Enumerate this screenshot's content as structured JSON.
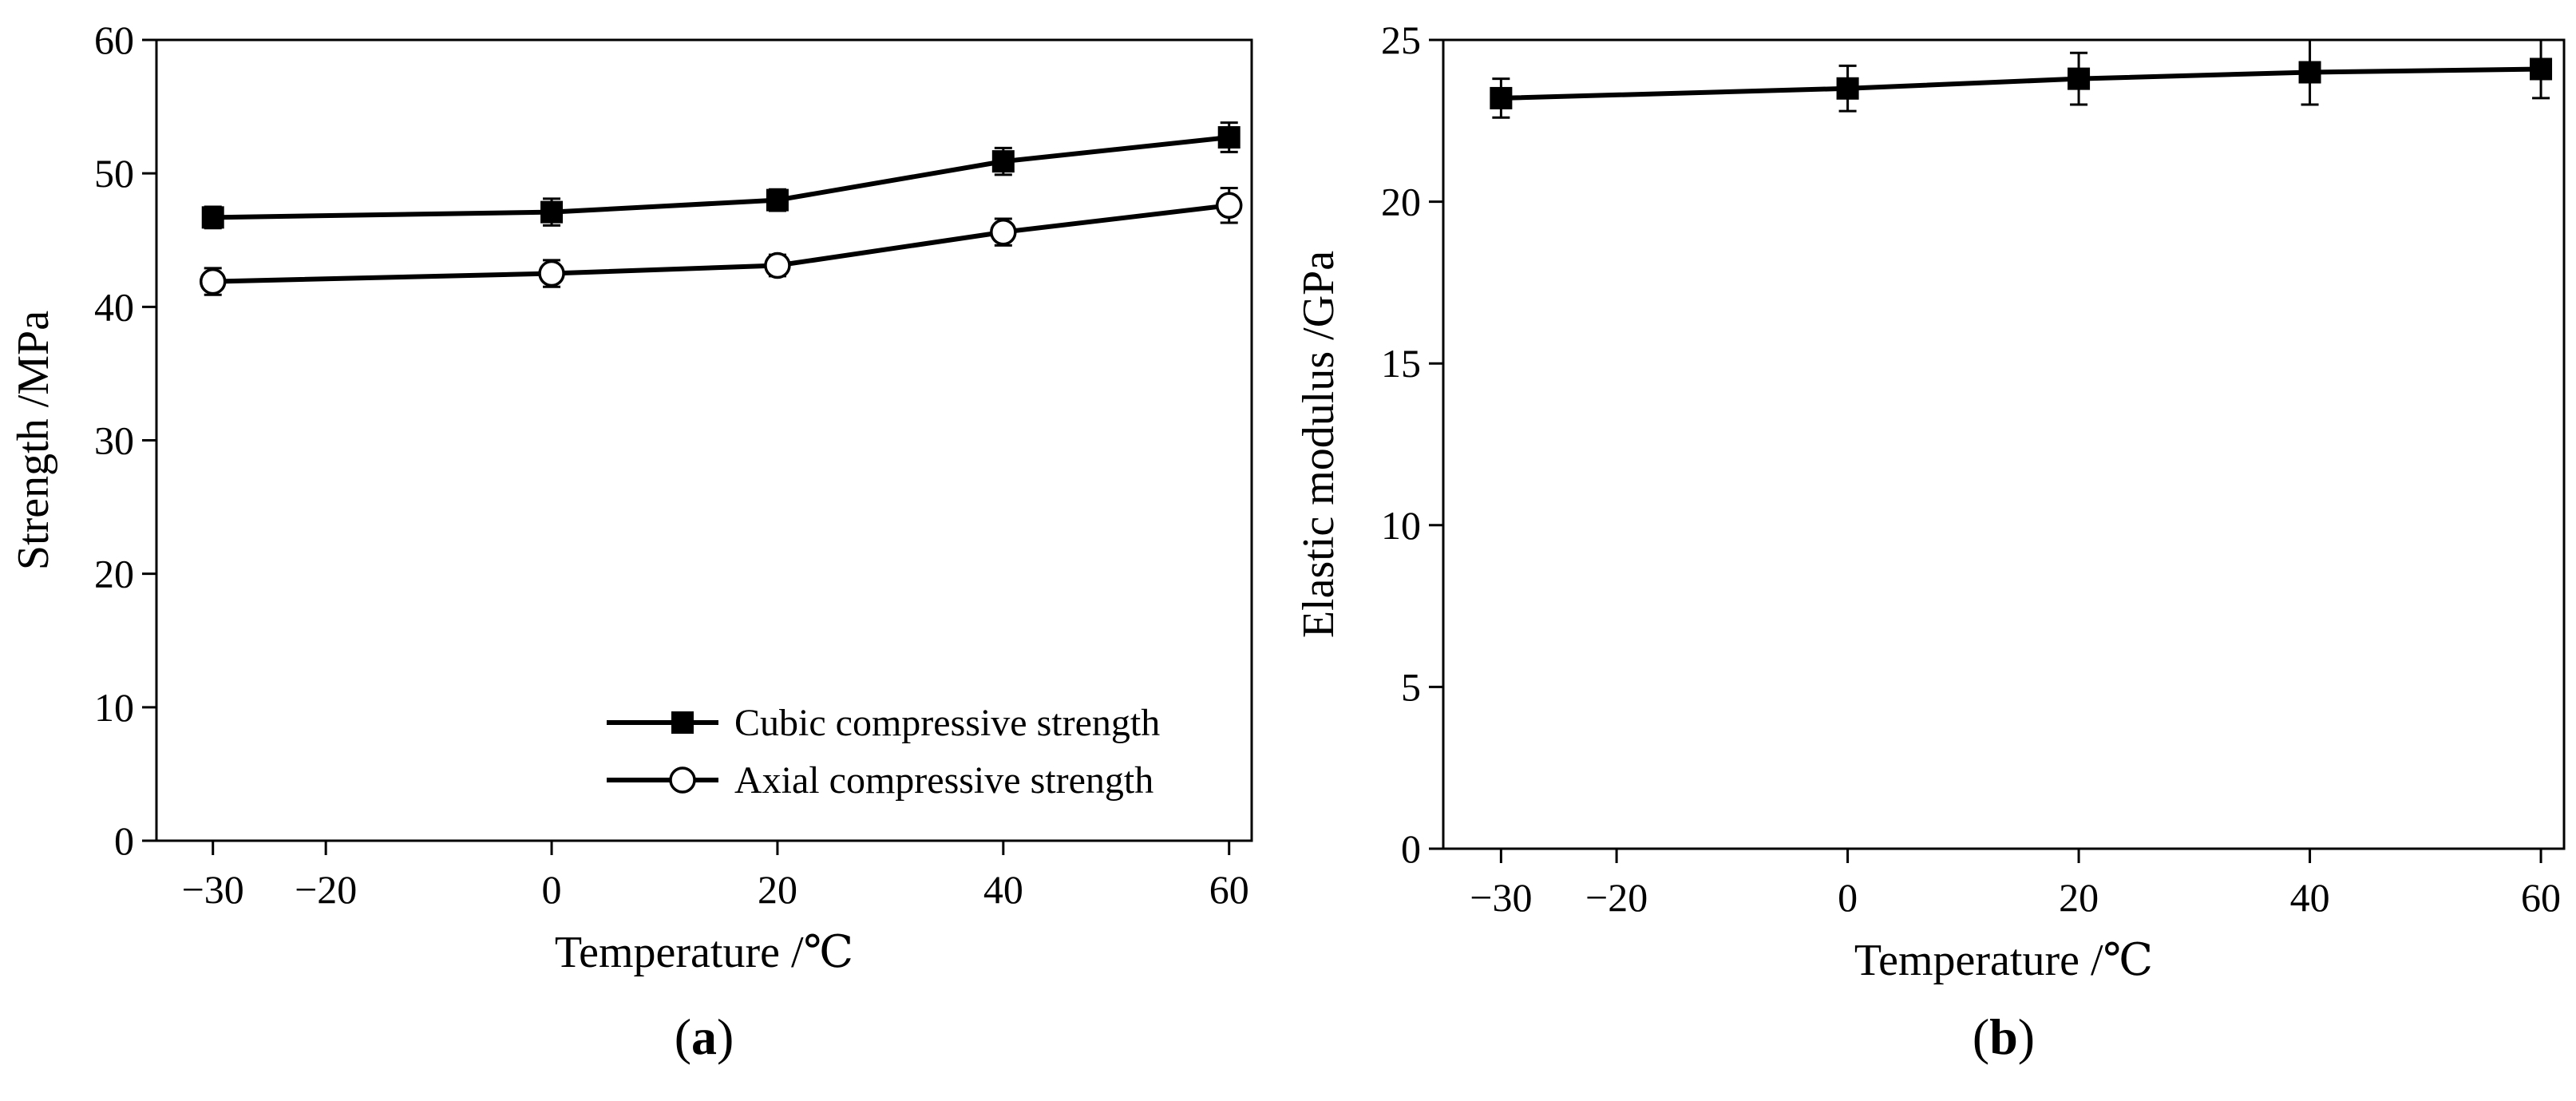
{
  "chart_data": [
    {
      "type": "line",
      "panel_label": "a",
      "xlabel": "Temperature /℃",
      "ylabel": "Strength /MPa",
      "xlim": [
        -35,
        62
      ],
      "ylim": [
        0,
        60
      ],
      "xticks": [
        -30,
        -20,
        0,
        20,
        40,
        60
      ],
      "xtick_labels": [
        "−30",
        "−20",
        "0",
        "20",
        "40",
        "60"
      ],
      "yticks": [
        0,
        10,
        20,
        30,
        40,
        50,
        60
      ],
      "ytick_labels": [
        "0",
        "10",
        "20",
        "30",
        "40",
        "50",
        "60"
      ],
      "legend_position": "bottom-right",
      "series": [
        {
          "name": "Cubic compressive strength",
          "marker": "square-filled",
          "x": [
            -30,
            0,
            20,
            40,
            60
          ],
          "y": [
            46.7,
            47.1,
            48.0,
            50.9,
            52.7
          ],
          "err": [
            0.8,
            1.0,
            0.8,
            1.0,
            1.1
          ]
        },
        {
          "name": "Axial compressive strength",
          "marker": "circle-open",
          "x": [
            -30,
            0,
            20,
            40,
            60
          ],
          "y": [
            41.9,
            42.5,
            43.1,
            45.6,
            47.6
          ],
          "err": [
            1.0,
            1.0,
            0.8,
            1.0,
            1.3
          ]
        }
      ]
    },
    {
      "type": "line",
      "panel_label": "b",
      "xlabel": "Temperature /℃",
      "ylabel": "Elastic modulus /GPa",
      "xlim": [
        -35,
        62
      ],
      "ylim": [
        0,
        25
      ],
      "xticks": [
        -30,
        -20,
        0,
        20,
        40,
        60
      ],
      "xtick_labels": [
        "−30",
        "−20",
        "0",
        "20",
        "40",
        "60"
      ],
      "yticks": [
        0,
        5,
        10,
        15,
        20,
        25
      ],
      "ytick_labels": [
        "0",
        "5",
        "10",
        "15",
        "20",
        "25"
      ],
      "series": [
        {
          "name": "Elastic modulus",
          "marker": "square-filled",
          "x": [
            -30,
            0,
            20,
            40,
            60
          ],
          "y": [
            23.2,
            23.5,
            23.8,
            24.0,
            24.1
          ],
          "err": [
            0.6,
            0.7,
            0.8,
            1.0,
            0.9
          ]
        }
      ]
    }
  ]
}
